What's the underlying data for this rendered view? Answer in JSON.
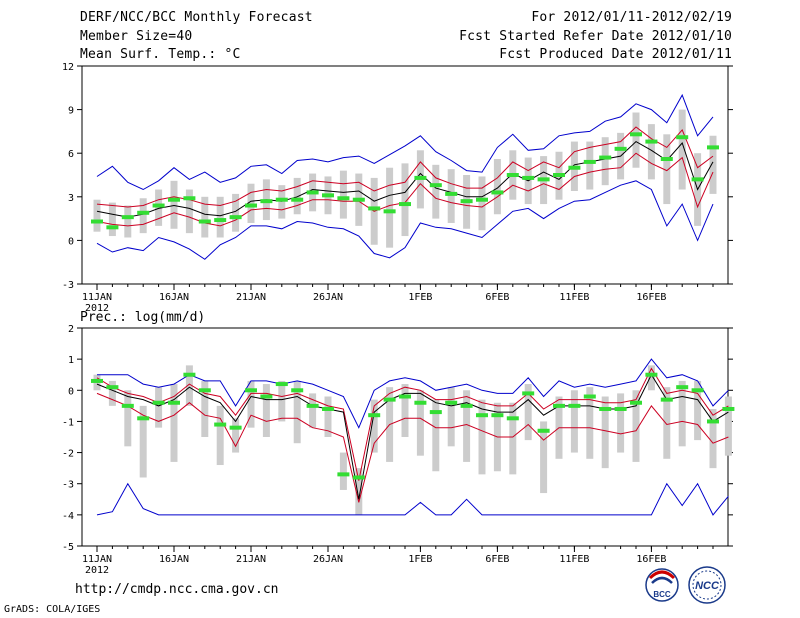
{
  "header": {
    "title": "DERF/NCC/BCC Monthly Forecast",
    "member_size": "Member Size=40",
    "variable": "Mean Surf. Temp.: °C",
    "period": "For 2012/01/11-2012/02/19",
    "start_date": "Fcst Started Refer Date 2012/01/10",
    "produced_date": "Fcst Produced Date 2012/01/11"
  },
  "footer": {
    "url": "http://cmdp.ncc.cma.gov.cn",
    "credit": "GrADS: COLA/IGES",
    "logos": [
      {
        "icon": "bcc-logo-icon",
        "text": "BCC"
      },
      {
        "icon": "ncc-logo-icon",
        "text": "NCC"
      }
    ]
  },
  "colors": {
    "envelope": "#0000cc",
    "std_band": "#cc0022",
    "mean": "#000000",
    "spread_box": "#cccccc",
    "ensemble_mark": "#33dd33"
  },
  "chart_data": [
    {
      "type": "line",
      "title": "Mean Surf. Temp.: °C",
      "days": 40,
      "x_ticks": [
        {
          "day": 0,
          "label": "11JAN",
          "sub": "2012"
        },
        {
          "day": 5,
          "label": "16JAN"
        },
        {
          "day": 10,
          "label": "21JAN"
        },
        {
          "day": 15,
          "label": "26JAN"
        },
        {
          "day": 21,
          "label": "1FEB"
        },
        {
          "day": 26,
          "label": "6FEB"
        },
        {
          "day": 31,
          "label": "11FEB"
        },
        {
          "day": 36,
          "label": "16FEB"
        }
      ],
      "y_ticks": [
        -3,
        0,
        3,
        6,
        9,
        12
      ],
      "ylim": [
        -3,
        12
      ],
      "series": [
        {
          "name": "max",
          "values": [
            4.4,
            5.1,
            4.0,
            3.5,
            4.1,
            5.0,
            4.2,
            4.7,
            4.0,
            4.3,
            5.1,
            5.2,
            4.6,
            5.5,
            5.6,
            5.4,
            5.7,
            5.8,
            5.3,
            5.9,
            6.5,
            7.2,
            6.1,
            5.5,
            4.8,
            4.7,
            6.4,
            7.3,
            6.2,
            6.3,
            7.2,
            7.4,
            7.5,
            8.2,
            8.5,
            9.4,
            9.0,
            8.1,
            10.0,
            7.2,
            8.5
          ]
        },
        {
          "name": "upper",
          "values": [
            2.5,
            2.4,
            2.3,
            2.4,
            2.8,
            3.0,
            2.8,
            2.5,
            2.4,
            2.7,
            3.3,
            3.5,
            3.4,
            3.7,
            4.1,
            4.0,
            3.9,
            4.0,
            3.4,
            3.8,
            4.0,
            5.4,
            4.3,
            3.9,
            3.6,
            3.6,
            4.3,
            5.4,
            4.8,
            5.4,
            5.0,
            6.1,
            6.4,
            6.6,
            6.8,
            7.8,
            7.0,
            6.4,
            7.6,
            5.0,
            5.8
          ]
        },
        {
          "name": "mean",
          "values": [
            2.0,
            1.8,
            1.6,
            1.8,
            2.2,
            2.4,
            2.2,
            1.8,
            1.7,
            2.0,
            2.7,
            2.8,
            2.7,
            3.0,
            3.5,
            3.4,
            3.3,
            3.4,
            2.7,
            3.1,
            3.3,
            4.6,
            3.6,
            3.3,
            3.0,
            3.0,
            3.6,
            4.6,
            4.1,
            4.7,
            4.2,
            5.2,
            5.4,
            5.6,
            5.8,
            6.8,
            6.2,
            5.5,
            6.7,
            3.5,
            5.4
          ]
        },
        {
          "name": "lower",
          "values": [
            1.3,
            1.1,
            1.0,
            1.1,
            1.5,
            1.9,
            1.6,
            1.2,
            1.0,
            1.4,
            2.1,
            2.2,
            2.1,
            2.4,
            2.8,
            2.8,
            2.7,
            2.7,
            2.0,
            2.4,
            2.6,
            3.9,
            2.9,
            2.6,
            2.4,
            2.3,
            3.0,
            3.8,
            3.4,
            3.9,
            3.5,
            4.4,
            4.7,
            4.9,
            5.0,
            6.0,
            5.3,
            4.8,
            5.7,
            2.3,
            4.7
          ]
        },
        {
          "name": "min",
          "values": [
            -0.2,
            -0.8,
            -0.5,
            -0.7,
            0.2,
            -0.1,
            -0.6,
            -1.3,
            -0.3,
            0.2,
            1.0,
            1.0,
            0.8,
            1.3,
            1.2,
            0.9,
            0.8,
            0.3,
            -0.9,
            -1.2,
            -0.5,
            1.2,
            0.9,
            0.8,
            0.5,
            0.2,
            1.1,
            2.0,
            2.2,
            1.5,
            2.2,
            2.7,
            2.8,
            3.3,
            3.8,
            4.1,
            3.5,
            1.0,
            2.5,
            0.0,
            2.5
          ]
        },
        {
          "name": "ensemble",
          "values": [
            1.3,
            0.9,
            1.6,
            1.9,
            2.4,
            2.8,
            2.9,
            1.3,
            1.4,
            1.6,
            2.4,
            2.7,
            2.8,
            2.8,
            3.3,
            3.1,
            2.9,
            2.8,
            2.2,
            2.0,
            2.5,
            4.3,
            3.8,
            3.2,
            2.7,
            2.8,
            3.3,
            4.5,
            4.3,
            4.2,
            4.5,
            5.0,
            5.4,
            5.7,
            6.3,
            7.3,
            6.8,
            5.6,
            7.1,
            4.2,
            6.4
          ]
        },
        {
          "name": "box_low",
          "values": [
            0.6,
            0.3,
            0.2,
            0.5,
            1.0,
            0.8,
            0.5,
            0.2,
            0.2,
            0.6,
            1.2,
            1.4,
            1.5,
            1.8,
            2.0,
            1.8,
            1.5,
            1.0,
            -0.3,
            -0.5,
            0.3,
            2.2,
            1.5,
            1.2,
            0.8,
            0.7,
            1.8,
            2.8,
            2.5,
            2.5,
            2.8,
            3.4,
            3.5,
            3.8,
            4.2,
            5.0,
            4.2,
            2.5,
            3.5,
            1.0,
            3.2
          ]
        },
        {
          "name": "box_high",
          "values": [
            2.8,
            2.6,
            2.4,
            2.9,
            3.5,
            4.1,
            3.5,
            3.0,
            3.0,
            3.2,
            3.9,
            4.2,
            3.8,
            4.3,
            4.6,
            4.4,
            4.8,
            4.6,
            4.3,
            5.0,
            5.3,
            6.2,
            5.2,
            4.9,
            4.5,
            4.4,
            5.6,
            6.2,
            5.7,
            5.8,
            6.1,
            6.8,
            6.8,
            7.1,
            7.4,
            8.8,
            8.0,
            7.3,
            9.0,
            6.0,
            7.2
          ]
        }
      ]
    },
    {
      "type": "line",
      "title": "Prec.: log(mm/d)",
      "days": 40,
      "x_ticks": [
        {
          "day": 0,
          "label": "11JAN",
          "sub": "2012"
        },
        {
          "day": 5,
          "label": "16JAN"
        },
        {
          "day": 10,
          "label": "21JAN"
        },
        {
          "day": 15,
          "label": "26JAN"
        },
        {
          "day": 21,
          "label": "1FEB"
        },
        {
          "day": 26,
          "label": "6FEB"
        },
        {
          "day": 31,
          "label": "11FEB"
        },
        {
          "day": 36,
          "label": "16FEB"
        }
      ],
      "y_ticks": [
        -5,
        -4,
        -3,
        -2,
        -1,
        0,
        1,
        2
      ],
      "ylim": [
        -5,
        2
      ],
      "series": [
        {
          "name": "max",
          "values": [
            0.5,
            0.5,
            0.5,
            0.2,
            0.1,
            0.2,
            0.5,
            0.3,
            0.3,
            -0.5,
            0.3,
            0.3,
            0.2,
            0.3,
            0.2,
            0.0,
            -0.2,
            -1.2,
            0.0,
            0.3,
            0.4,
            0.3,
            0.0,
            0.1,
            0.2,
            0.0,
            -0.1,
            -0.1,
            0.4,
            -0.2,
            0.3,
            0.1,
            0.2,
            0.1,
            0.2,
            0.3,
            1.0,
            0.4,
            0.5,
            0.3,
            -0.5,
            0.0
          ]
        },
        {
          "name": "upper",
          "values": [
            0.4,
            0.1,
            -0.1,
            -0.2,
            -0.4,
            -0.2,
            0.2,
            -0.1,
            -0.2,
            -0.8,
            -0.1,
            -0.1,
            -0.2,
            -0.1,
            -0.3,
            -0.5,
            -0.6,
            -2.9,
            -0.5,
            -0.1,
            0.1,
            0.0,
            -0.3,
            -0.3,
            -0.2,
            -0.4,
            -0.5,
            -0.5,
            -0.1,
            -0.6,
            -0.3,
            -0.3,
            -0.3,
            -0.4,
            -0.4,
            -0.3,
            0.7,
            -0.1,
            0.0,
            -0.1,
            -0.8,
            -0.5
          ]
        },
        {
          "name": "mean",
          "values": [
            0.2,
            0.0,
            -0.2,
            -0.3,
            -0.5,
            -0.3,
            0.1,
            -0.2,
            -0.4,
            -1.0,
            -0.2,
            -0.3,
            -0.3,
            -0.2,
            -0.5,
            -0.6,
            -0.7,
            -3.5,
            -0.7,
            -0.3,
            -0.1,
            -0.1,
            -0.4,
            -0.5,
            -0.4,
            -0.6,
            -0.7,
            -0.7,
            -0.3,
            -0.8,
            -0.5,
            -0.5,
            -0.5,
            -0.6,
            -0.6,
            -0.5,
            0.5,
            -0.3,
            -0.2,
            -0.3,
            -1.0,
            -0.7
          ]
        },
        {
          "name": "lower",
          "values": [
            -0.1,
            -0.3,
            -0.5,
            -0.8,
            -1.0,
            -0.8,
            -0.4,
            -0.8,
            -0.9,
            -1.8,
            -0.8,
            -1.0,
            -0.9,
            -0.9,
            -1.2,
            -1.3,
            -1.5,
            -3.6,
            -1.7,
            -1.1,
            -0.9,
            -0.9,
            -1.2,
            -1.2,
            -1.1,
            -1.3,
            -1.5,
            -1.5,
            -1.1,
            -1.6,
            -1.2,
            -1.2,
            -1.2,
            -1.3,
            -1.4,
            -1.3,
            -0.5,
            -1.1,
            -1.0,
            -1.1,
            -1.7,
            -1.5
          ]
        },
        {
          "name": "min",
          "values": [
            -4.0,
            -3.9,
            -3.0,
            -3.8,
            -4.0,
            -4.0,
            -4.0,
            -4.0,
            -4.0,
            -4.0,
            -4.0,
            -4.0,
            -4.0,
            -4.0,
            -4.0,
            -4.0,
            -4.0,
            -4.0,
            -4.0,
            -4.0,
            -4.0,
            -3.6,
            -4.0,
            -4.0,
            -3.5,
            -4.0,
            -4.0,
            -4.0,
            -4.0,
            -4.0,
            -4.0,
            -4.0,
            -4.0,
            -4.0,
            -4.0,
            -4.0,
            -4.0,
            -3.0,
            -3.7,
            -3.0,
            -4.0,
            -3.4
          ]
        },
        {
          "name": "ensemble",
          "values": [
            0.3,
            0.1,
            -0.5,
            -0.9,
            -0.4,
            -0.4,
            0.5,
            0.0,
            -1.1,
            -1.2,
            0.0,
            -0.2,
            0.2,
            0.0,
            -0.5,
            -0.6,
            -2.7,
            -2.8,
            -0.8,
            -0.3,
            -0.2,
            -0.4,
            -0.7,
            -0.4,
            -0.5,
            -0.8,
            -0.8,
            -0.9,
            -0.1,
            -1.3,
            -0.5,
            -0.5,
            -0.2,
            -0.6,
            -0.6,
            -0.4,
            0.5,
            -0.3,
            0.1,
            0.0,
            -1.0,
            -0.6
          ]
        },
        {
          "name": "box_low",
          "values": [
            0.0,
            -0.5,
            -1.8,
            -2.8,
            -1.2,
            -2.3,
            -0.5,
            -1.5,
            -2.4,
            -2.0,
            -1.2,
            -1.5,
            -1.0,
            -1.7,
            -1.2,
            -1.5,
            -3.2,
            -4.0,
            -2.0,
            -2.3,
            -1.5,
            -2.1,
            -2.6,
            -1.8,
            -2.3,
            -2.7,
            -2.6,
            -2.7,
            -1.6,
            -3.3,
            -2.2,
            -2.0,
            -2.2,
            -2.5,
            -2.0,
            -2.3,
            0.0,
            -2.2,
            -1.8,
            -1.6,
            -2.5,
            -2.1
          ]
        },
        {
          "name": "box_high",
          "values": [
            0.5,
            0.3,
            0.0,
            -0.5,
            0.1,
            0.2,
            0.8,
            0.3,
            -0.5,
            -0.9,
            0.3,
            0.2,
            0.3,
            0.3,
            -0.1,
            -0.2,
            -2.0,
            -2.5,
            -0.3,
            0.1,
            0.2,
            0.0,
            -0.3,
            0.1,
            0.0,
            -0.3,
            -0.4,
            -0.4,
            0.2,
            -1.0,
            -0.2,
            0.0,
            0.1,
            -0.2,
            -0.1,
            0.0,
            0.8,
            0.1,
            0.3,
            0.3,
            -0.6,
            -0.2
          ]
        }
      ]
    }
  ]
}
